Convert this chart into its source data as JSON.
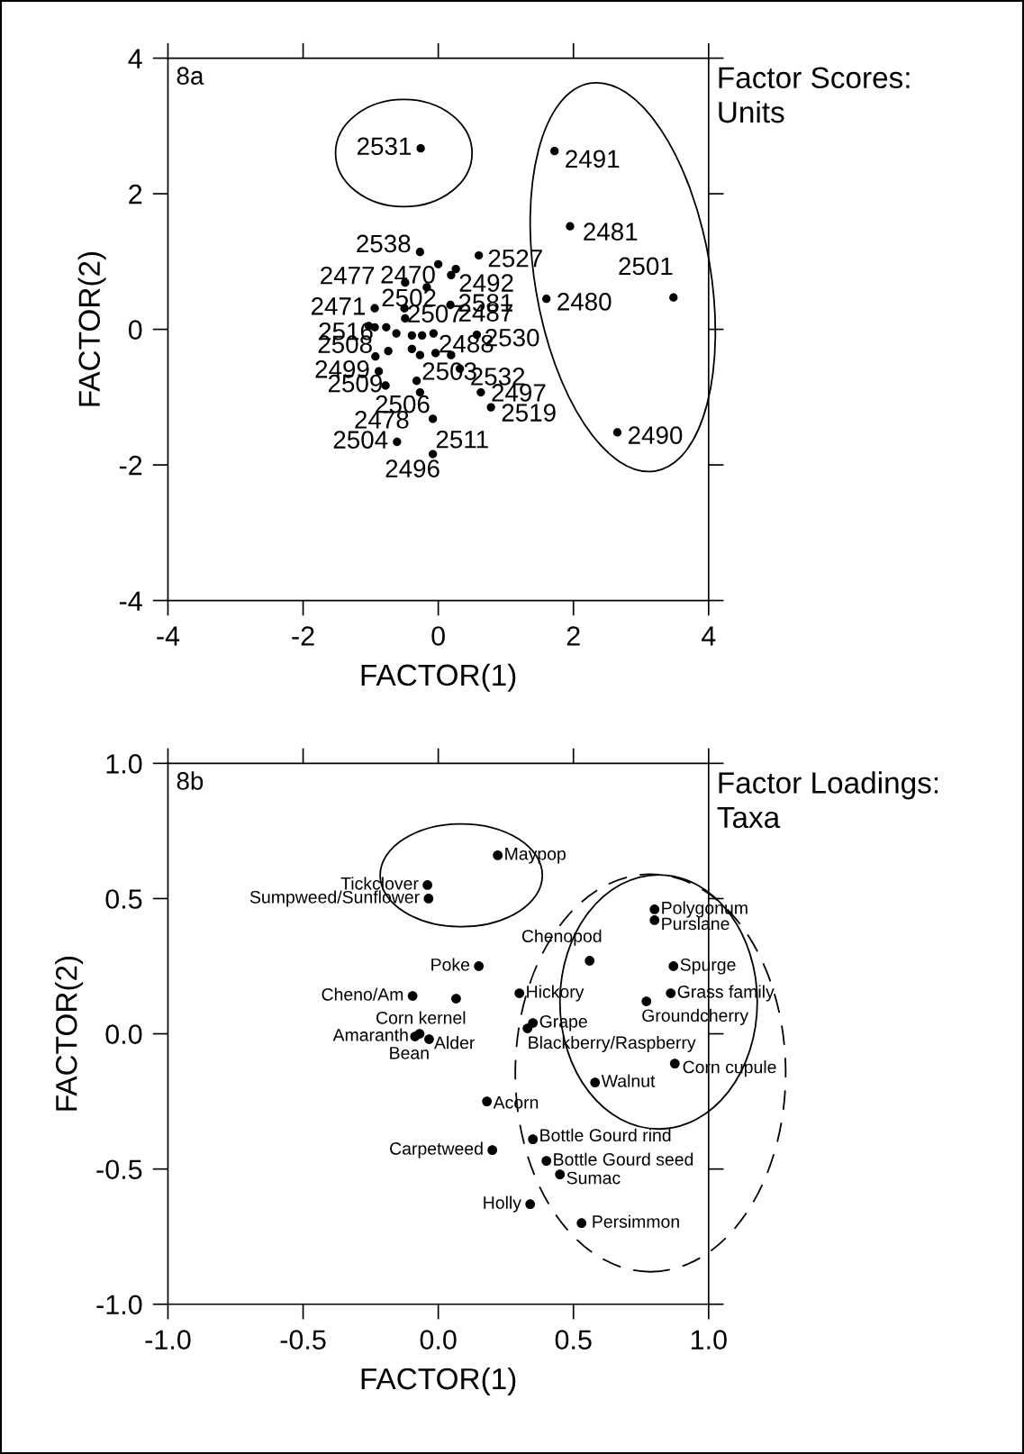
{
  "chart_data": [
    {
      "type": "scatter",
      "title": "8a",
      "subtitle": "Factor Scores:\nUnits",
      "xlabel": "FACTOR(1)",
      "ylabel": "FACTOR(2)",
      "color": "#000000",
      "marker": "circle",
      "x": [
        -0.26,
        1.72,
        1.95,
        3.48,
        1.6,
        2.65,
        0.6,
        0.26,
        0.19,
        0.0,
        -0.27,
        0.18,
        0.57,
        0.32,
        0.63,
        0.78,
        -0.32,
        -0.27,
        -0.08,
        -0.61,
        -0.08,
        -0.78,
        -0.88,
        -0.93,
        -0.94,
        -1.03,
        -0.94,
        -0.49,
        -0.17,
        -0.5,
        -0.49,
        -0.77,
        -0.62,
        -0.39,
        -0.24,
        -0.07,
        -0.74,
        -0.39,
        -0.27,
        -0.04,
        0.19
      ],
      "values": [
        2.67,
        2.63,
        1.52,
        0.47,
        0.45,
        -1.52,
        1.09,
        0.89,
        0.8,
        0.96,
        1.14,
        0.36,
        -0.08,
        -0.58,
        -0.93,
        -1.15,
        -0.76,
        -0.93,
        -1.32,
        -1.66,
        -1.84,
        -0.83,
        -0.62,
        -0.4,
        0.31,
        0.05,
        0.03,
        0.69,
        0.62,
        0.31,
        0.16,
        0.03,
        -0.06,
        -0.09,
        -0.09,
        -0.06,
        -0.32,
        -0.29,
        -0.38,
        -0.35,
        -0.38
      ],
      "xlim": [
        -4,
        4
      ],
      "ylim": [
        -4,
        4
      ],
      "xticks": [
        -4,
        -2,
        0,
        2,
        4
      ],
      "yticks": [
        -4,
        -2,
        0,
        2,
        4
      ],
      "annotations": [
        {
          "text": "2531",
          "x": -0.26,
          "y": 2.67
        },
        {
          "text": "2491",
          "x": 1.72,
          "y": 2.63
        },
        {
          "text": "2481",
          "x": 1.95,
          "y": 1.52
        },
        {
          "text": "2501",
          "x": 3.48,
          "y": 0.47
        },
        {
          "text": "2480",
          "x": 1.6,
          "y": 0.45
        },
        {
          "text": "2490",
          "x": 2.65,
          "y": -1.52
        },
        {
          "text": "2527",
          "x": 0.6,
          "y": 1.09
        },
        {
          "text": "2492",
          "x": 0.19,
          "y": 0.8
        },
        {
          "text": "2470",
          "x": 0.0,
          "y": 0.96
        },
        {
          "text": "2538",
          "x": -0.27,
          "y": 1.14
        },
        {
          "text": "2581",
          "x": 0.18,
          "y": 0.36
        },
        {
          "text": "2487",
          "x": 0.18,
          "y": 0.36
        },
        {
          "text": "2530",
          "x": 0.57,
          "y": -0.08
        },
        {
          "text": "2532",
          "x": 0.32,
          "y": -0.58
        },
        {
          "text": "2497",
          "x": 0.63,
          "y": -0.93
        },
        {
          "text": "2519",
          "x": 0.78,
          "y": -1.15
        },
        {
          "text": "2503",
          "x": -0.32,
          "y": -0.76
        },
        {
          "text": "2506",
          "x": -0.08,
          "y": -1.32
        },
        {
          "text": "2478",
          "x": -0.61,
          "y": -1.66
        },
        {
          "text": "2504",
          "x": -0.61,
          "y": -1.66
        },
        {
          "text": "2511",
          "x": -0.08,
          "y": -1.84
        },
        {
          "text": "2496",
          "x": -0.08,
          "y": -1.84
        },
        {
          "text": "2509",
          "x": -0.78,
          "y": -0.83
        },
        {
          "text": "2499",
          "x": -0.88,
          "y": -0.62
        },
        {
          "text": "2508",
          "x": -0.93,
          "y": -0.4
        },
        {
          "text": "2471",
          "x": -0.94,
          "y": 0.31
        },
        {
          "text": "2516",
          "x": -1.03,
          "y": 0.05
        },
        {
          "text": "2507",
          "x": -0.5,
          "y": 0.31
        },
        {
          "text": "2488",
          "x": -0.07,
          "y": -0.06
        },
        {
          "text": "2477",
          "x": -0.49,
          "y": 0.69
        },
        {
          "text": "2502",
          "x": -0.17,
          "y": 0.62
        }
      ]
    },
    {
      "type": "scatter",
      "title": "8b",
      "subtitle": "Factor Loadings:\nTaxa",
      "xlabel": "FACTOR(1)",
      "ylabel": "FACTOR(2)",
      "color": "#000000",
      "marker": "circle",
      "x": [
        0.22,
        -0.04,
        -0.036,
        0.8,
        0.8,
        0.56,
        0.87,
        0.15,
        -0.095,
        0.066,
        0.3,
        0.86,
        0.77,
        0.35,
        0.33,
        -0.086,
        -0.069,
        -0.034,
        0.875,
        0.58,
        0.18,
        0.35,
        0.2,
        0.4,
        0.45,
        0.34,
        0.53
      ],
      "values": [
        0.66,
        0.55,
        0.5,
        0.46,
        0.42,
        0.27,
        0.25,
        0.25,
        0.14,
        0.13,
        0.15,
        0.15,
        0.12,
        0.04,
        0.02,
        -0.01,
        0.0,
        -0.02,
        -0.11,
        -0.18,
        -0.25,
        -0.39,
        -0.43,
        -0.47,
        -0.52,
        -0.63,
        -0.7
      ],
      "xlim": [
        -1.0,
        1.0
      ],
      "ylim": [
        -1.0,
        1.0
      ],
      "xticks": [
        {
          "value": -1,
          "label": "-1.0"
        },
        -0.5,
        {
          "value": 0,
          "label": "0.0"
        },
        0.5,
        {
          "value": 1,
          "label": "1.0"
        }
      ],
      "yticks": [
        {
          "value": -1,
          "label": "-1.0"
        },
        -0.5,
        {
          "value": 0,
          "label": "0.0"
        },
        0.5,
        {
          "value": 1,
          "label": "1.0"
        }
      ],
      "annotations": [
        {
          "text": "Maypop",
          "x": 0.22,
          "y": 0.66
        },
        {
          "text": "Tickclover",
          "x": -0.04,
          "y": 0.55
        },
        {
          "text": "Sumpweed/Sunflower",
          "x": -0.036,
          "y": 0.5
        },
        {
          "text": "Polygonum",
          "x": 0.8,
          "y": 0.46
        },
        {
          "text": "Purslane",
          "x": 0.8,
          "y": 0.42
        },
        {
          "text": "Chenopod",
          "x": 0.56,
          "y": 0.27
        },
        {
          "text": "Spurge",
          "x": 0.87,
          "y": 0.25
        },
        {
          "text": "Poke",
          "x": 0.15,
          "y": 0.25
        },
        {
          "text": "Cheno/Am",
          "x": -0.095,
          "y": 0.14
        },
        {
          "text": "Corn kernel",
          "x": 0.066,
          "y": 0.13
        },
        {
          "text": "Hickory",
          "x": 0.3,
          "y": 0.15
        },
        {
          "text": "Grass family",
          "x": 0.86,
          "y": 0.15
        },
        {
          "text": "Groundcherry",
          "x": 0.77,
          "y": 0.12
        },
        {
          "text": "Grape",
          "x": 0.35,
          "y": 0.04
        },
        {
          "text": "Blackberry/Raspberry",
          "x": 0.33,
          "y": 0.02
        },
        {
          "text": "Amaranth",
          "x": -0.086,
          "y": -0.01
        },
        {
          "text": "Bean",
          "x": -0.069,
          "y": 0.0
        },
        {
          "text": "Alder",
          "x": -0.034,
          "y": -0.02
        },
        {
          "text": "Corn cupule",
          "x": 0.875,
          "y": -0.11
        },
        {
          "text": "Walnut",
          "x": 0.58,
          "y": -0.18
        },
        {
          "text": "Acorn",
          "x": 0.18,
          "y": -0.25
        },
        {
          "text": "Bottle Gourd rind",
          "x": 0.35,
          "y": -0.39
        },
        {
          "text": "Carpetweed",
          "x": 0.2,
          "y": -0.43
        },
        {
          "text": "Bottle Gourd seed",
          "x": 0.4,
          "y": -0.47
        },
        {
          "text": "Sumac",
          "x": 0.45,
          "y": -0.52
        },
        {
          "text": "Holly",
          "x": 0.34,
          "y": -0.63
        },
        {
          "text": "Persimmon",
          "x": 0.53,
          "y": -0.7
        }
      ]
    }
  ]
}
